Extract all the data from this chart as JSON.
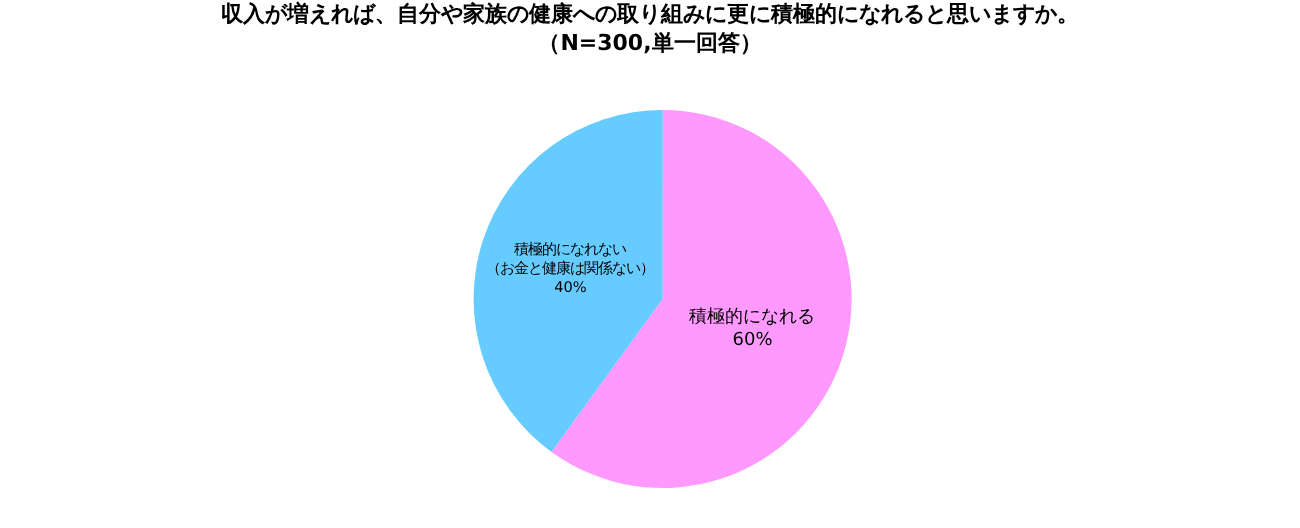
{
  "chart_data": {
    "type": "pie",
    "title": "収入が増えれば、自分や家族の健康への取り組みに更に積極的になれると思いますか。",
    "subtitle": "（N=300,単一回答）",
    "categories": [
      "積極的になれる",
      "積極的になれない（お金と健康は関係ない）"
    ],
    "values": [
      60,
      40
    ],
    "value_labels": [
      "60%",
      "40%"
    ],
    "colors": [
      "#ff99ff",
      "#66ccff"
    ],
    "legend": false
  }
}
